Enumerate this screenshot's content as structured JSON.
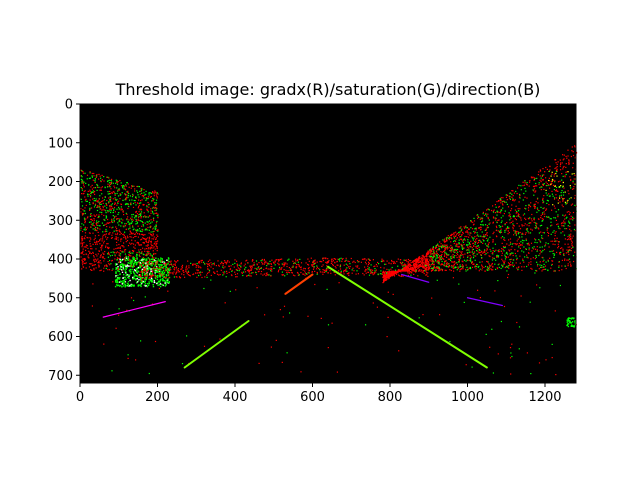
{
  "chart_data": {
    "type": "image",
    "title": "Threshold image: gradx(R)/saturation(G)/direction(B)",
    "xlim": [
      0,
      1280
    ],
    "ylim": [
      720,
      0
    ],
    "x_ticks": [
      0,
      200,
      400,
      600,
      800,
      1000,
      1200
    ],
    "y_ticks": [
      0,
      100,
      200,
      300,
      400,
      500,
      600,
      700
    ],
    "background": "#000000",
    "channels": [
      {
        "channel": "R",
        "name": "gradx",
        "color": "#ff0000"
      },
      {
        "channel": "G",
        "name": "saturation",
        "color": "#00ff00"
      },
      {
        "channel": "B",
        "name": "direction",
        "color": "#0000ff"
      }
    ],
    "lane_lines": [
      {
        "side": "left",
        "x": [
          270,
          435
        ],
        "y": [
          680,
          560
        ],
        "color": "#80ff00"
      },
      {
        "side": "right",
        "x": [
          640,
          1050
        ],
        "y": [
          420,
          680
        ],
        "color": "#80ff00"
      },
      {
        "side": "left-far",
        "x": [
          530,
          600
        ],
        "y": [
          490,
          440
        ],
        "color": "#ff4000"
      }
    ],
    "magenta_streaks": [
      {
        "x": [
          60,
          220
        ],
        "y": [
          550,
          510
        ],
        "color": "#ff00ff"
      },
      {
        "x": [
          830,
          900
        ],
        "y": [
          440,
          460
        ],
        "color": "#8000ff"
      },
      {
        "x": [
          1000,
          1090
        ],
        "y": [
          500,
          520
        ],
        "color": "#8000ff"
      }
    ]
  }
}
